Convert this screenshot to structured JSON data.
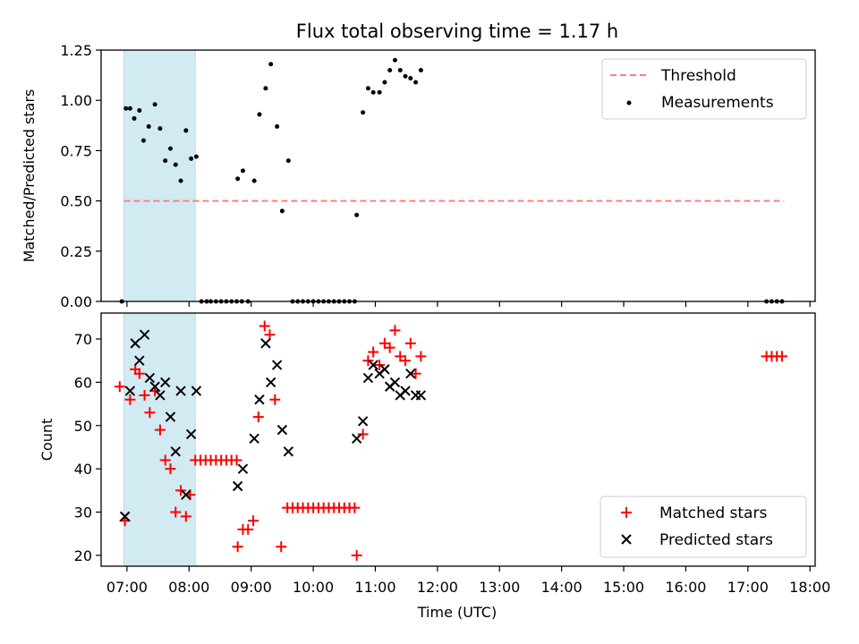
{
  "figure": {
    "title": "Flux total observing time = 1.17 h",
    "xlabel": "Time (UTC)"
  },
  "chart_data": [
    {
      "type": "scatter",
      "name": "ratio-panel",
      "ylabel": "Matched/Predicted stars",
      "xlim": [
        "06:35",
        "18:05"
      ],
      "ylim": [
        0,
        1.25
      ],
      "yticks": [
        "0.00",
        "0.25",
        "0.50",
        "0.75",
        "1.00",
        "1.25"
      ],
      "grid": false,
      "legend_position": "upper right",
      "shaded_span": {
        "start": "06:57",
        "end": "08:06",
        "color": "#add8e6"
      },
      "threshold": {
        "name": "Threshold",
        "y": 0.5,
        "x_start": "06:57",
        "x_end": "17:35",
        "color": "#ff7f7f",
        "style": "dashed"
      },
      "series": [
        {
          "name": "Measurements",
          "color": "#000000",
          "marker": "dot",
          "points": [
            [
              "06:55",
              0
            ],
            [
              "06:59",
              0.96
            ],
            [
              "07:03",
              0.96
            ],
            [
              "07:07",
              0.91
            ],
            [
              "07:12",
              0.95
            ],
            [
              "07:16",
              0.8
            ],
            [
              "07:21",
              0.87
            ],
            [
              "07:27",
              0.98
            ],
            [
              "07:32",
              0.86
            ],
            [
              "07:37",
              0.7
            ],
            [
              "07:42",
              0.76
            ],
            [
              "07:47",
              0.68
            ],
            [
              "07:52",
              0.6
            ],
            [
              "07:57",
              0.85
            ],
            [
              "08:02",
              0.71
            ],
            [
              "08:07",
              0.72
            ],
            [
              "08:12",
              0
            ],
            [
              "08:17",
              0
            ],
            [
              "08:21",
              0
            ],
            [
              "08:26",
              0
            ],
            [
              "08:31",
              0
            ],
            [
              "08:36",
              0
            ],
            [
              "08:41",
              0
            ],
            [
              "08:46",
              0
            ],
            [
              "08:51",
              0
            ],
            [
              "08:47",
              0.61
            ],
            [
              "08:52",
              0.65
            ],
            [
              "08:57",
              0
            ],
            [
              "09:03",
              0.6
            ],
            [
              "09:08",
              0.93
            ],
            [
              "09:14",
              1.06
            ],
            [
              "09:19",
              1.18
            ],
            [
              "09:25",
              0.87
            ],
            [
              "09:30",
              0.45
            ],
            [
              "09:36",
              0.7
            ],
            [
              "09:40",
              0
            ],
            [
              "09:45",
              0
            ],
            [
              "09:50",
              0
            ],
            [
              "09:55",
              0
            ],
            [
              "10:00",
              0
            ],
            [
              "10:05",
              0
            ],
            [
              "10:10",
              0
            ],
            [
              "10:15",
              0
            ],
            [
              "10:20",
              0
            ],
            [
              "10:25",
              0
            ],
            [
              "10:30",
              0
            ],
            [
              "10:35",
              0
            ],
            [
              "10:40",
              0
            ],
            [
              "10:42",
              0.43
            ],
            [
              "10:48",
              0.94
            ],
            [
              "10:53",
              1.06
            ],
            [
              "10:58",
              1.04
            ],
            [
              "11:04",
              1.04
            ],
            [
              "11:09",
              1.09
            ],
            [
              "11:14",
              1.15
            ],
            [
              "11:19",
              1.2
            ],
            [
              "11:24",
              1.15
            ],
            [
              "11:29",
              1.12
            ],
            [
              "11:34",
              1.11
            ],
            [
              "11:39",
              1.09
            ],
            [
              "11:44",
              1.15
            ],
            [
              "17:18",
              0
            ],
            [
              "17:23",
              0
            ],
            [
              "17:28",
              0
            ],
            [
              "17:33",
              0
            ]
          ]
        }
      ]
    },
    {
      "type": "scatter",
      "name": "count-panel",
      "ylabel": "Count",
      "xlim": [
        "06:35",
        "18:05"
      ],
      "ylim": [
        17.5,
        76
      ],
      "yticks": [
        "20",
        "30",
        "40",
        "50",
        "60",
        "70"
      ],
      "xticks": [
        "07:00",
        "08:00",
        "09:00",
        "10:00",
        "11:00",
        "12:00",
        "13:00",
        "14:00",
        "15:00",
        "16:00",
        "17:00",
        "18:00"
      ],
      "grid": false,
      "legend_position": "lower right",
      "shaded_span": {
        "start": "06:57",
        "end": "08:06",
        "color": "#add8e6"
      },
      "series": [
        {
          "name": "Matched stars",
          "color": "#ff0000",
          "marker": "plus",
          "points": [
            [
              "06:53",
              59
            ],
            [
              "06:58",
              28
            ],
            [
              "07:03",
              56
            ],
            [
              "07:08",
              63
            ],
            [
              "07:12",
              62
            ],
            [
              "07:17",
              57
            ],
            [
              "07:22",
              53
            ],
            [
              "07:27",
              58
            ],
            [
              "07:32",
              49
            ],
            [
              "07:37",
              42
            ],
            [
              "07:42",
              40
            ],
            [
              "07:47",
              30
            ],
            [
              "07:52",
              35
            ],
            [
              "07:57",
              29
            ],
            [
              "08:01",
              34
            ],
            [
              "08:06",
              42
            ],
            [
              "08:11",
              42
            ],
            [
              "08:16",
              42
            ],
            [
              "08:21",
              42
            ],
            [
              "08:26",
              42
            ],
            [
              "08:31",
              42
            ],
            [
              "08:36",
              42
            ],
            [
              "08:41",
              42
            ],
            [
              "08:46",
              42
            ],
            [
              "08:47",
              22
            ],
            [
              "08:52",
              26
            ],
            [
              "08:57",
              26
            ],
            [
              "09:02",
              28
            ],
            [
              "09:07",
              52
            ],
            [
              "09:13",
              73
            ],
            [
              "09:18",
              71
            ],
            [
              "09:23",
              56
            ],
            [
              "09:29",
              22
            ],
            [
              "09:35",
              31
            ],
            [
              "09:40",
              31
            ],
            [
              "09:45",
              31
            ],
            [
              "09:50",
              31
            ],
            [
              "09:55",
              31
            ],
            [
              "10:00",
              31
            ],
            [
              "10:05",
              31
            ],
            [
              "10:10",
              31
            ],
            [
              "10:15",
              31
            ],
            [
              "10:20",
              31
            ],
            [
              "10:25",
              31
            ],
            [
              "10:30",
              31
            ],
            [
              "10:35",
              31
            ],
            [
              "10:40",
              31
            ],
            [
              "10:42",
              20
            ],
            [
              "10:48",
              48
            ],
            [
              "10:53",
              65
            ],
            [
              "10:58",
              67
            ],
            [
              "11:04",
              64
            ],
            [
              "11:09",
              69
            ],
            [
              "11:14",
              68
            ],
            [
              "11:19",
              72
            ],
            [
              "11:24",
              66
            ],
            [
              "11:29",
              65
            ],
            [
              "11:34",
              69
            ],
            [
              "11:39",
              62
            ],
            [
              "11:44",
              66
            ],
            [
              "17:18",
              66
            ],
            [
              "17:23",
              66
            ],
            [
              "17:28",
              66
            ],
            [
              "17:33",
              66
            ]
          ]
        },
        {
          "name": "Predicted stars",
          "color": "#000000",
          "marker": "x",
          "points": [
            [
              "06:58",
              29
            ],
            [
              "07:03",
              58
            ],
            [
              "07:08",
              69
            ],
            [
              "07:12",
              65
            ],
            [
              "07:17",
              71
            ],
            [
              "07:22",
              61
            ],
            [
              "07:27",
              59
            ],
            [
              "07:32",
              57
            ],
            [
              "07:37",
              60
            ],
            [
              "07:42",
              52
            ],
            [
              "07:47",
              44
            ],
            [
              "07:52",
              58
            ],
            [
              "07:57",
              34
            ],
            [
              "08:02",
              48
            ],
            [
              "08:07",
              58
            ],
            [
              "08:47",
              36
            ],
            [
              "08:52",
              40
            ],
            [
              "09:03",
              47
            ],
            [
              "09:08",
              56
            ],
            [
              "09:14",
              69
            ],
            [
              "09:19",
              60
            ],
            [
              "09:25",
              64
            ],
            [
              "09:30",
              49
            ],
            [
              "09:36",
              44
            ],
            [
              "10:42",
              47
            ],
            [
              "10:48",
              51
            ],
            [
              "10:53",
              61
            ],
            [
              "10:58",
              64
            ],
            [
              "11:04",
              62
            ],
            [
              "11:09",
              63
            ],
            [
              "11:14",
              59
            ],
            [
              "11:19",
              60
            ],
            [
              "11:24",
              57
            ],
            [
              "11:29",
              58
            ],
            [
              "11:34",
              62
            ],
            [
              "11:39",
              57
            ],
            [
              "11:44",
              57
            ]
          ]
        }
      ]
    }
  ]
}
